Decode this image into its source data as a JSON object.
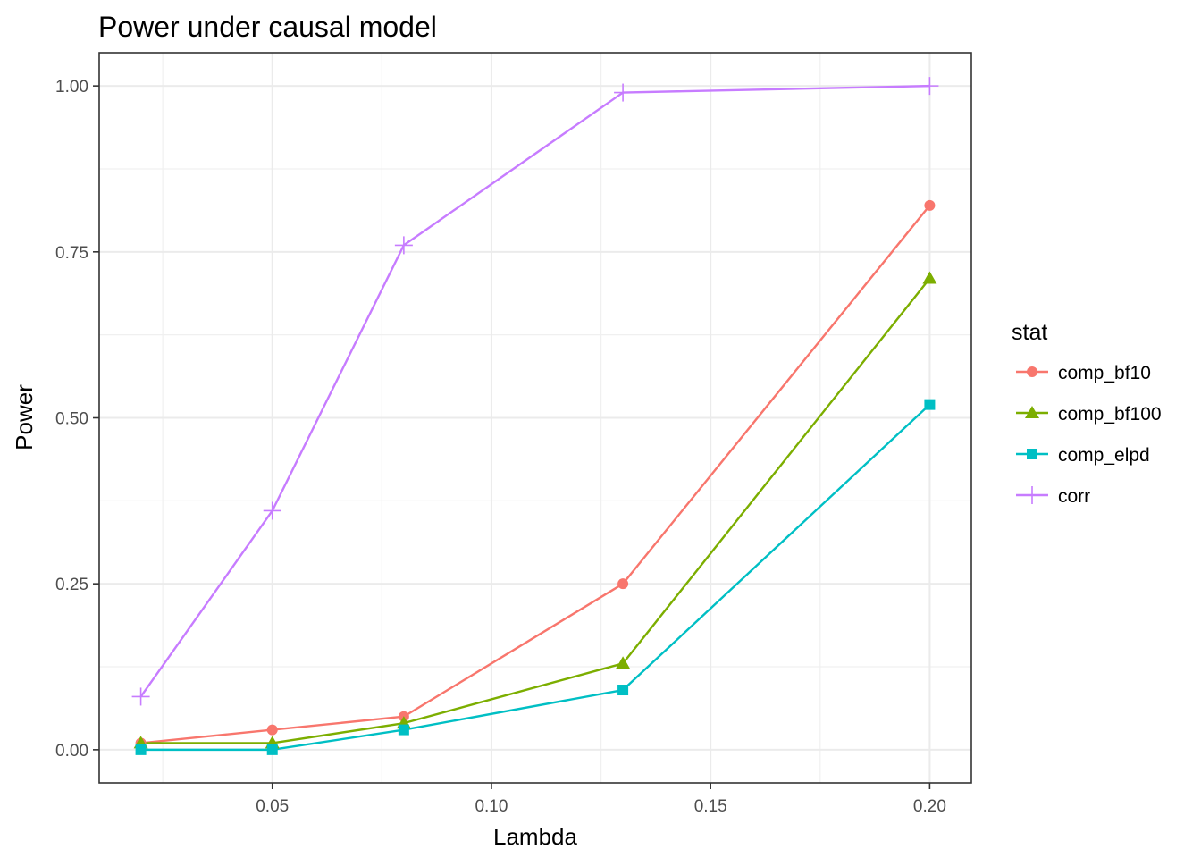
{
  "chart_data": {
    "type": "line",
    "title": "Power under causal model",
    "xlabel": "Lambda",
    "ylabel": "Power",
    "x": [
      0.02,
      0.05,
      0.08,
      0.13,
      0.2
    ],
    "xlim": [
      0.0105,
      0.2095
    ],
    "ylim": [
      -0.05,
      1.05
    ],
    "x_ticks": [
      0.05,
      0.1,
      0.15,
      0.2
    ],
    "x_tick_labels": [
      "0.05",
      "0.10",
      "0.15",
      "0.20"
    ],
    "y_ticks": [
      0.0,
      0.25,
      0.5,
      0.75,
      1.0
    ],
    "y_tick_labels": [
      "0.00",
      "0.25",
      "0.50",
      "0.75",
      "1.00"
    ],
    "grid": true,
    "legend_title": "stat",
    "legend_position": "right",
    "series": [
      {
        "name": "comp_bf10",
        "color": "#F8766D",
        "marker": "circle",
        "values": [
          0.01,
          0.03,
          0.05,
          0.25,
          0.82
        ]
      },
      {
        "name": "comp_bf100",
        "color": "#7CAE00",
        "marker": "triangle",
        "values": [
          0.01,
          0.01,
          0.04,
          0.13,
          0.71
        ]
      },
      {
        "name": "comp_elpd",
        "color": "#00BFC4",
        "marker": "square",
        "values": [
          0.0,
          0.0,
          0.03,
          0.09,
          0.52
        ]
      },
      {
        "name": "corr",
        "color": "#C77CFF",
        "marker": "plus",
        "values": [
          0.08,
          0.36,
          0.76,
          0.99,
          1.0
        ]
      }
    ]
  }
}
